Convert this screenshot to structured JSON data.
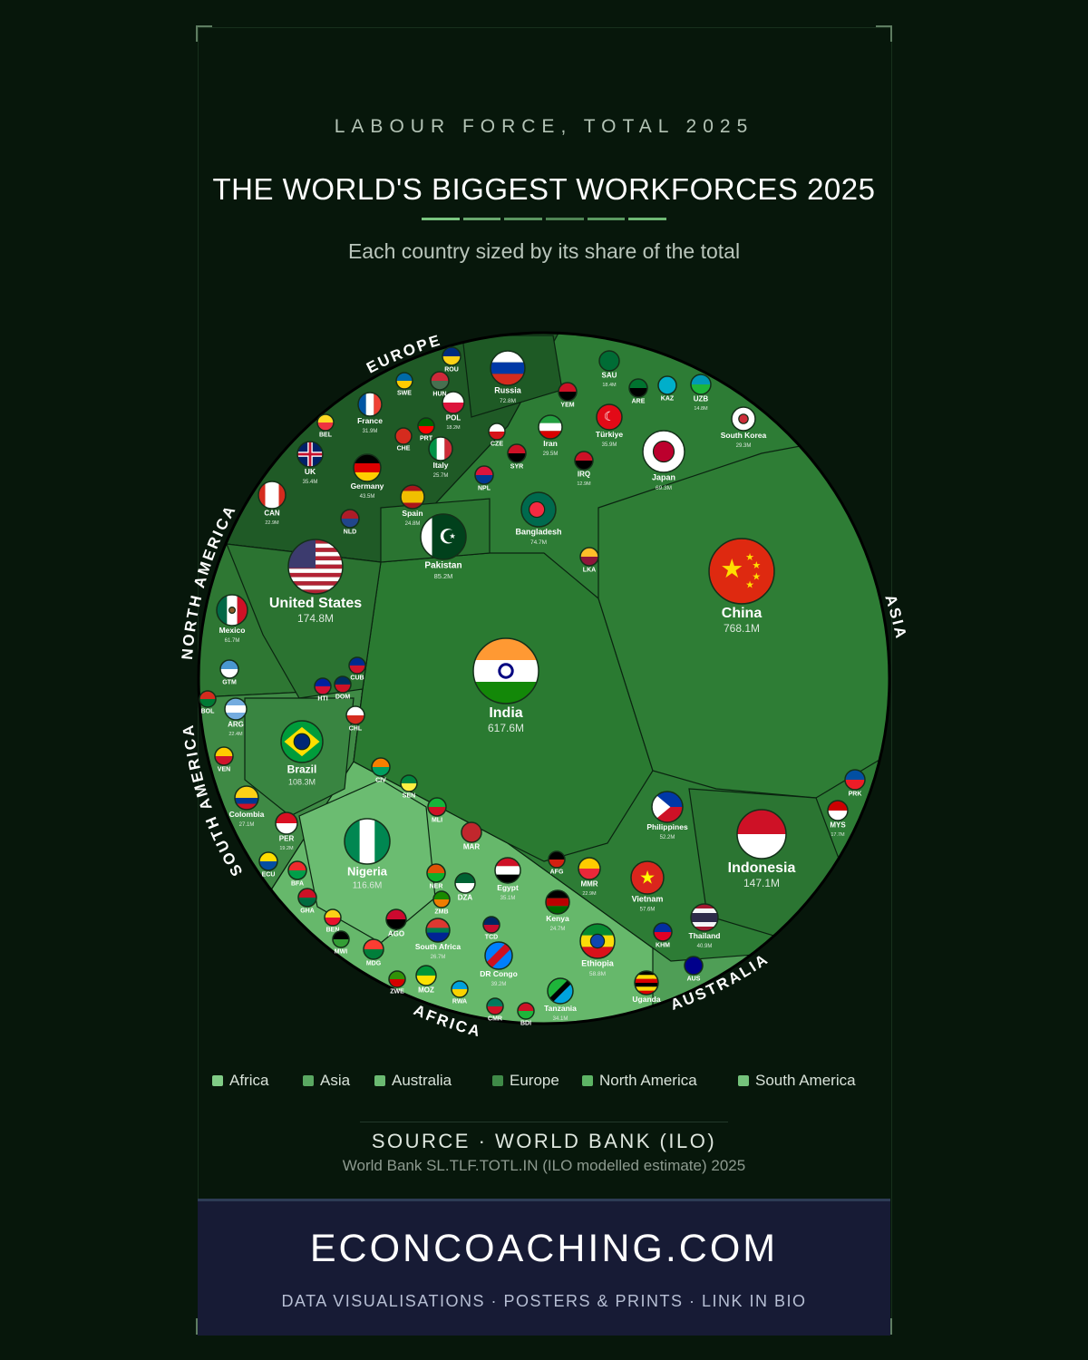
{
  "header": {
    "kicker": "LABOUR FORCE, TOTAL 2025",
    "title": "THE WORLD'S BIGGEST WORKFORCES 2025",
    "subtitle": "Each country sized by its share of the total"
  },
  "colors": {
    "background": "#07170b",
    "title_rule": [
      "#79c47f",
      "#69a86e",
      "#5b9660",
      "#4f8554",
      "#5b9a61",
      "#6eb874"
    ],
    "Africa": "#66b86b",
    "Asia": "#2d7c35",
    "Australia": "#4f9e56",
    "Europe": "#1f5a26",
    "North America": "#2e7733",
    "South America": "#3f8a45"
  },
  "region_arc_labels": [
    "EUROPE",
    "NORTH AMERICA",
    "SOUTH AMERICA",
    "AFRICA",
    "AUSTRALIA",
    "ASIA"
  ],
  "chart_data": {
    "type": "voronoi-treemap",
    "unit": "M",
    "countries": [
      {
        "label": "China",
        "value_label": "768.1M",
        "region": "Asia",
        "flag": "china-flag"
      },
      {
        "label": "India",
        "value_label": "617.6M",
        "region": "Asia",
        "flag": "india-flag"
      },
      {
        "label": "United States",
        "value_label": "174.8M",
        "region": "North America",
        "flag": "usa-flag"
      },
      {
        "label": "Indonesia",
        "value_label": "147.1M",
        "region": "Asia",
        "flag": "indonesia-flag"
      },
      {
        "label": "Nigeria",
        "value_label": "116.6M",
        "region": "Africa",
        "flag": "nigeria-flag"
      },
      {
        "label": "Brazil",
        "value_label": "108.3M",
        "region": "South America",
        "flag": "brazil-flag"
      },
      {
        "label": "Pakistan",
        "value_label": "85.2M",
        "region": "Asia",
        "flag": "pakistan-flag"
      },
      {
        "label": "Bangladesh",
        "value_label": "74.7M",
        "region": "Asia",
        "flag": "bangladesh-flag"
      },
      {
        "label": "Russia",
        "value_label": "72.8M",
        "region": "Europe",
        "flag": "russia-flag"
      },
      {
        "label": "Japan",
        "value_label": "69.3M",
        "region": "Asia",
        "flag": "japan-flag"
      },
      {
        "label": "Mexico",
        "value_label": "61.7M",
        "region": "North America",
        "flag": "mexico-flag"
      },
      {
        "label": "Ethiopia",
        "value_label": "58.8M",
        "region": "Africa",
        "flag": "ethiopia-flag"
      },
      {
        "label": "Vietnam",
        "value_label": "57.6M",
        "region": "Asia",
        "flag": "vietnam-flag"
      },
      {
        "label": "Philippines",
        "value_label": "52.2M",
        "region": "Asia",
        "flag": "philippines-flag"
      },
      {
        "label": "Germany",
        "value_label": "43.5M",
        "region": "Europe",
        "flag": "germany-flag"
      },
      {
        "label": "Thailand",
        "value_label": "40.9M",
        "region": "Asia",
        "flag": "thailand-flag"
      },
      {
        "label": "DR Congo",
        "value_label": "39.2M",
        "region": "Africa",
        "flag": "drcongo-flag"
      },
      {
        "label": "Egypt",
        "value_label": "35.1M",
        "region": "Africa",
        "flag": "egypt-flag"
      },
      {
        "label": "UK",
        "value_label": "35.4M",
        "region": "Europe",
        "flag": "uk-flag"
      },
      {
        "label": "Türkiye",
        "value_label": "35.9M",
        "region": "Asia",
        "flag": "turkiye-flag"
      },
      {
        "label": "Tanzania",
        "value_label": "34.1M",
        "region": "Africa",
        "flag": "tanzania-flag"
      },
      {
        "label": "France",
        "value_label": "31.9M",
        "region": "Europe",
        "flag": "france-flag"
      },
      {
        "label": "South Korea",
        "value_label": "29.3M",
        "region": "Asia",
        "flag": "southkorea-flag"
      },
      {
        "label": "Iran",
        "value_label": "29.5M",
        "region": "Asia",
        "flag": "iran-flag"
      },
      {
        "label": "South Africa",
        "value_label": "26.7M",
        "region": "Africa",
        "flag": "southafrica-flag"
      },
      {
        "label": "Colombia",
        "value_label": "27.1M",
        "region": "South America",
        "flag": "colombia-flag"
      },
      {
        "label": "Italy",
        "value_label": "25.7M",
        "region": "Europe",
        "flag": "italy-flag"
      },
      {
        "label": "Spain",
        "value_label": "24.8M",
        "region": "Europe",
        "flag": "spain-flag"
      },
      {
        "label": "Kenya",
        "value_label": "24.7M",
        "region": "Africa",
        "flag": "kenya-flag"
      },
      {
        "label": "ARG",
        "value_label": "22.4M",
        "region": "South America",
        "flag": "argentina-flag"
      },
      {
        "label": "CAN",
        "value_label": "22.9M",
        "region": "North America",
        "flag": "canada-flag"
      },
      {
        "label": "Uganda",
        "value_label": "",
        "region": "Africa",
        "flag": "uganda-flag"
      },
      {
        "label": "SAU",
        "value_label": "18.4M",
        "region": "Asia",
        "flag": "saudi-flag"
      },
      {
        "label": "POL",
        "value_label": "18.2M",
        "region": "Europe",
        "flag": "poland-flag"
      },
      {
        "label": "PER",
        "value_label": "19.2M",
        "region": "South America",
        "flag": "peru-flag"
      },
      {
        "label": "MYS",
        "value_label": "17.7M",
        "region": "Asia",
        "flag": "malaysia-flag"
      },
      {
        "label": "UZB",
        "value_label": "14.8M",
        "region": "Asia",
        "flag": "uzbekistan-flag"
      },
      {
        "label": "AGO",
        "value_label": "",
        "region": "Africa",
        "flag": "angola-flag"
      },
      {
        "label": "MOZ",
        "value_label": "",
        "region": "Africa",
        "flag": "mozambique-flag"
      },
      {
        "label": "DZA",
        "value_label": "",
        "region": "Africa",
        "flag": "algeria-flag"
      },
      {
        "label": "MAR",
        "value_label": "",
        "region": "Africa",
        "flag": "morocco-flag"
      },
      {
        "label": "IRQ",
        "value_label": "12.9M",
        "region": "Asia",
        "flag": "iraq-flag"
      },
      {
        "label": "MMR",
        "value_label": "22.9M",
        "region": "Asia",
        "flag": "myanmar-flag"
      },
      {
        "label": "AFG",
        "value_label": "",
        "region": "Asia",
        "flag": "afghanistan-flag"
      },
      {
        "label": "YEM",
        "value_label": "",
        "region": "Asia",
        "flag": "yemen-flag"
      },
      {
        "label": "KAZ",
        "value_label": "",
        "region": "Asia",
        "flag": "kazakhstan-flag"
      },
      {
        "label": "ARE",
        "value_label": "",
        "region": "Asia",
        "flag": "uae-flag"
      },
      {
        "label": "SYR",
        "value_label": "",
        "region": "Asia",
        "flag": "syria-flag"
      },
      {
        "label": "NPL",
        "value_label": "",
        "region": "Asia",
        "flag": "nepal-flag"
      },
      {
        "label": "LKA",
        "value_label": "",
        "region": "Asia",
        "flag": "srilanka-flag"
      },
      {
        "label": "KHM",
        "value_label": "",
        "region": "Asia",
        "flag": "cambodia-flag"
      },
      {
        "label": "PRK",
        "value_label": "",
        "region": "Asia",
        "flag": "northkorea-flag"
      },
      {
        "label": "AUS",
        "value_label": "",
        "region": "Australia",
        "flag": "australia-flag"
      },
      {
        "label": "VEN",
        "value_label": "",
        "region": "South America",
        "flag": "venezuela-flag"
      },
      {
        "label": "ECU",
        "value_label": "",
        "region": "South America",
        "flag": "ecuador-flag"
      },
      {
        "label": "CHL",
        "value_label": "",
        "region": "South America",
        "flag": "chile-flag"
      },
      {
        "label": "BOL",
        "value_label": "",
        "region": "South America",
        "flag": "bolivia-flag"
      },
      {
        "label": "GTM",
        "value_label": "",
        "region": "North America",
        "flag": "guatemala-flag"
      },
      {
        "label": "CUB",
        "value_label": "",
        "region": "North America",
        "flag": "cuba-flag"
      },
      {
        "label": "DOM",
        "value_label": "",
        "region": "North America",
        "flag": "dominican-flag"
      },
      {
        "label": "HTI",
        "value_label": "",
        "region": "North America",
        "flag": "haiti-flag"
      },
      {
        "label": "NLD",
        "value_label": "",
        "region": "Europe",
        "flag": "netherlands-flag"
      },
      {
        "label": "BEL",
        "value_label": "",
        "region": "Europe",
        "flag": "belgium-flag"
      },
      {
        "label": "ROU",
        "value_label": "",
        "region": "Europe",
        "flag": "romania-flag"
      },
      {
        "label": "CZE",
        "value_label": "",
        "region": "Europe",
        "flag": "czech-flag"
      },
      {
        "label": "CHE",
        "value_label": "",
        "region": "Europe",
        "flag": "switzerland-flag"
      },
      {
        "label": "PRT",
        "value_label": "",
        "region": "Europe",
        "flag": "portugal-flag"
      },
      {
        "label": "SWE",
        "value_label": "",
        "region": "Europe",
        "flag": "sweden-flag"
      },
      {
        "label": "HUN",
        "value_label": "",
        "region": "Europe",
        "flag": "hungary-flag"
      },
      {
        "label": "CIV",
        "value_label": "",
        "region": "Africa",
        "flag": "ivorycoast-flag"
      },
      {
        "label": "SEN",
        "value_label": "",
        "region": "Africa",
        "flag": "senegal-flag"
      },
      {
        "label": "MLI",
        "value_label": "",
        "region": "Africa",
        "flag": "mali-flag"
      },
      {
        "label": "NER",
        "value_label": "",
        "region": "Africa",
        "flag": "niger-flag"
      },
      {
        "label": "BFA",
        "value_label": "",
        "region": "Africa",
        "flag": "burkinafaso-flag"
      },
      {
        "label": "GHA",
        "value_label": "",
        "region": "Africa",
        "flag": "ghana-flag"
      },
      {
        "label": "BEN",
        "value_label": "",
        "region": "Africa",
        "flag": "benin-flag"
      },
      {
        "label": "MWI",
        "value_label": "",
        "region": "Africa",
        "flag": "malawi-flag"
      },
      {
        "label": "MDG",
        "value_label": "",
        "region": "Africa",
        "flag": "madagascar-flag"
      },
      {
        "label": "ZMB",
        "value_label": "",
        "region": "Africa",
        "flag": "zambia-flag"
      },
      {
        "label": "ZWE",
        "value_label": "",
        "region": "Africa",
        "flag": "zimbabwe-flag"
      },
      {
        "label": "RWA",
        "value_label": "",
        "region": "Africa",
        "flag": "rwanda-flag"
      },
      {
        "label": "CMR",
        "value_label": "",
        "region": "Africa",
        "flag": "cameroon-flag"
      },
      {
        "label": "BDI",
        "value_label": "",
        "region": "Africa",
        "flag": "burundi-flag"
      },
      {
        "label": "TCD",
        "value_label": "",
        "region": "Africa",
        "flag": "chad-flag"
      }
    ]
  },
  "legend": [
    {
      "label": "Africa",
      "color": "#80cc86"
    },
    {
      "label": "Asia",
      "color": "#5aa862"
    },
    {
      "label": "Australia",
      "color": "#6bba72"
    },
    {
      "label": "Europe",
      "color": "#3f8a48"
    },
    {
      "label": "North America",
      "color": "#5db465"
    },
    {
      "label": "South America",
      "color": "#74c27b"
    }
  ],
  "source": {
    "title": "SOURCE · WORLD BANK (ILO)",
    "detail": "World Bank SL.TLF.TOTL.IN (ILO modelled estimate) 2025"
  },
  "footer": {
    "brand": "ECONCOACHING.COM",
    "tagline": "DATA VISUALISATIONS · POSTERS & PRINTS · LINK IN BIO"
  }
}
